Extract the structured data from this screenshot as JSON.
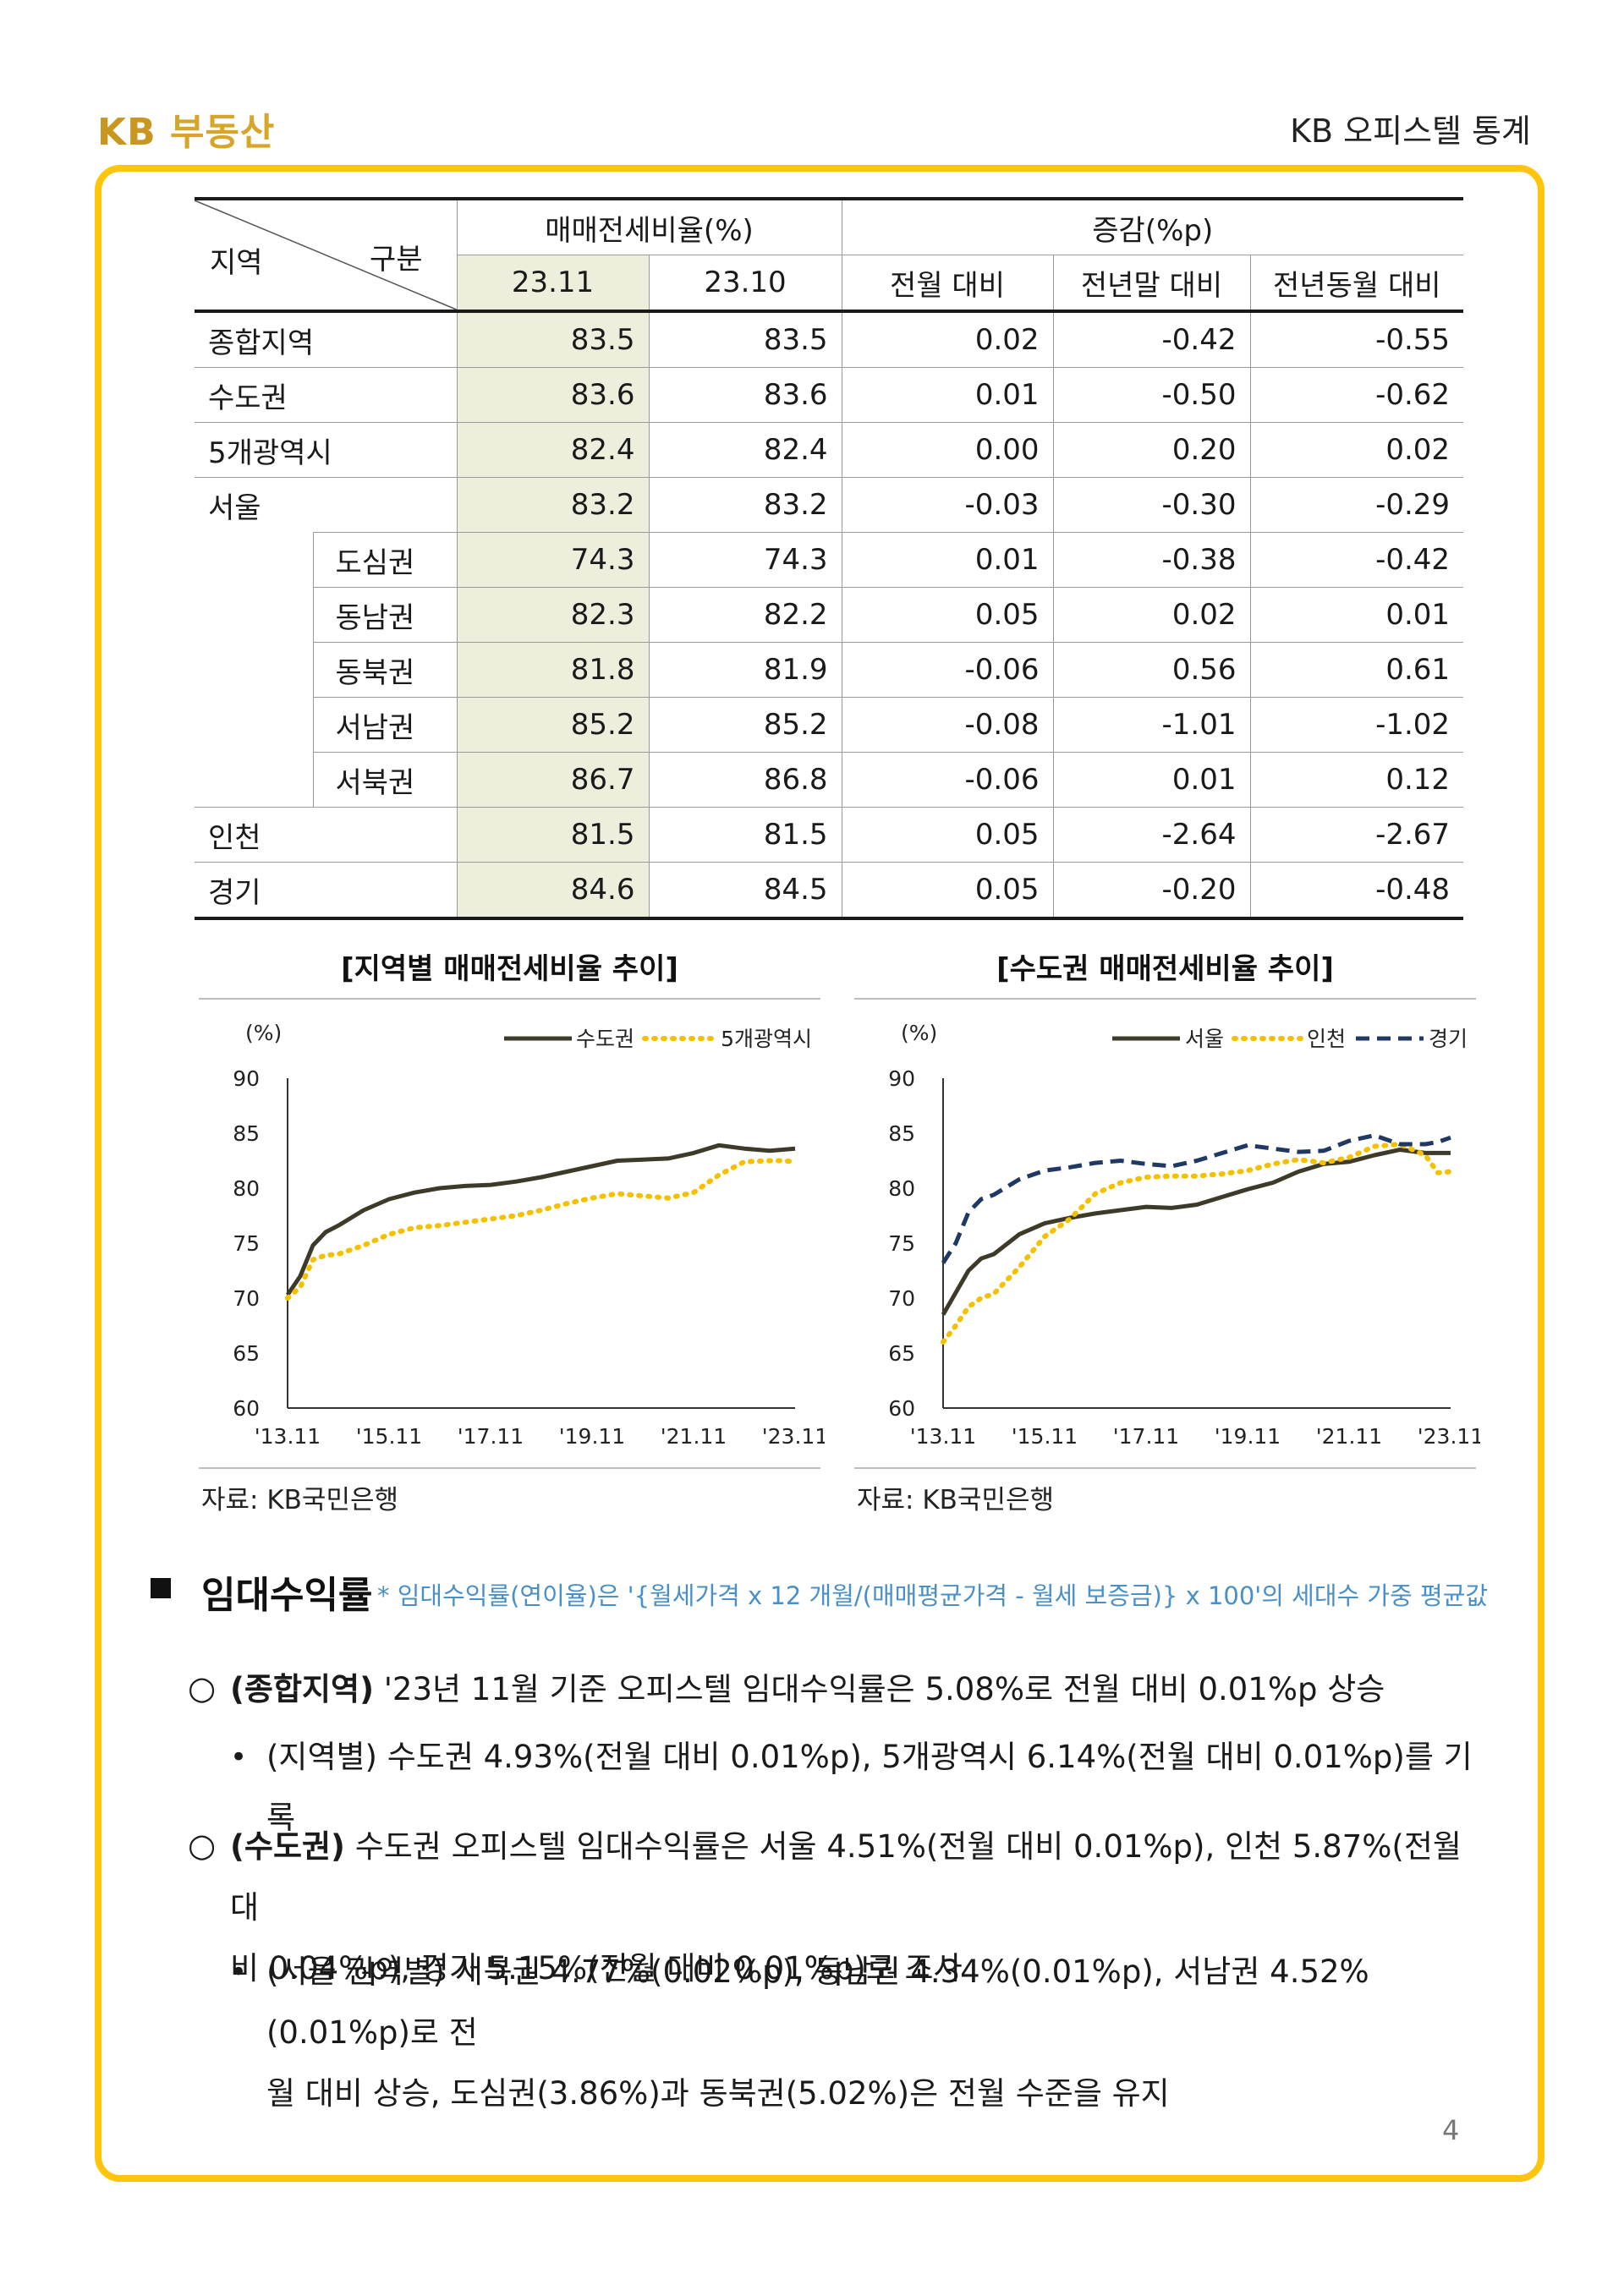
{
  "header": {
    "logo_kb": "KB",
    "logo_text": "부동산",
    "doc_title": "KB 오피스텔 통계"
  },
  "table": {
    "corner_left": "지역",
    "corner_right": "구분",
    "group1": "매매전세비율(%)",
    "group2": "증감(%p)",
    "cols": [
      "23.11",
      "23.10",
      "전월 대비",
      "전년말 대비",
      "전년동월 대비"
    ],
    "rows": [
      {
        "region": "종합지역",
        "v": [
          "83.5",
          "83.5",
          "0.02",
          "-0.42",
          "-0.55"
        ]
      },
      {
        "region": "수도권",
        "v": [
          "83.6",
          "83.6",
          "0.01",
          "-0.50",
          "-0.62"
        ]
      },
      {
        "region": "5개광역시",
        "v": [
          "82.4",
          "82.4",
          "0.00",
          "0.20",
          "0.02"
        ]
      },
      {
        "region": "서울",
        "v": [
          "83.2",
          "83.2",
          "-0.03",
          "-0.30",
          "-0.29"
        ]
      },
      {
        "region": "도심권",
        "v": [
          "74.3",
          "74.3",
          "0.01",
          "-0.38",
          "-0.42"
        ]
      },
      {
        "region": "동남권",
        "v": [
          "82.3",
          "82.2",
          "0.05",
          "0.02",
          "0.01"
        ]
      },
      {
        "region": "동북권",
        "v": [
          "81.8",
          "81.9",
          "-0.06",
          "0.56",
          "0.61"
        ]
      },
      {
        "region": "서남권",
        "v": [
          "85.2",
          "85.2",
          "-0.08",
          "-1.01",
          "-1.02"
        ]
      },
      {
        "region": "서북권",
        "v": [
          "86.7",
          "86.8",
          "-0.06",
          "0.01",
          "0.12"
        ]
      },
      {
        "region": "인천",
        "v": [
          "81.5",
          "81.5",
          "0.05",
          "-2.64",
          "-2.67"
        ]
      },
      {
        "region": "경기",
        "v": [
          "84.6",
          "84.5",
          "0.05",
          "-0.20",
          "-0.48"
        ]
      }
    ]
  },
  "chart_data": [
    {
      "type": "line",
      "title": "[지역별 매매전세비율 추이]",
      "ylabel": "(%)",
      "ylim": [
        60,
        90
      ],
      "yticks": [
        "90",
        "85",
        "80",
        "75",
        "70",
        "65",
        "60"
      ],
      "xticks": [
        "'13.11",
        "'15.11",
        "'17.11",
        "'19.11",
        "'21.11",
        "'23.11"
      ],
      "legend_position": "top-right",
      "series": [
        {
          "name": "수도권",
          "color": "#3d3a2a",
          "style": "solid",
          "x": [
            0,
            3,
            6,
            9,
            12,
            18,
            24,
            30,
            36,
            42,
            48,
            54,
            60,
            66,
            72,
            78,
            84,
            90,
            96,
            102,
            108,
            114,
            117,
            120
          ],
          "y": [
            70.3,
            72.0,
            74.8,
            76.0,
            76.6,
            78.0,
            79.0,
            79.6,
            80.0,
            80.2,
            80.3,
            80.6,
            81.0,
            81.5,
            82.0,
            82.5,
            82.6,
            82.7,
            83.2,
            83.9,
            83.6,
            83.4,
            83.5,
            83.6
          ]
        },
        {
          "name": "5개광역시",
          "color": "#f5c000",
          "style": "dotted",
          "x": [
            0,
            3,
            6,
            9,
            12,
            18,
            24,
            30,
            36,
            42,
            48,
            54,
            60,
            66,
            72,
            78,
            84,
            90,
            96,
            102,
            108,
            114,
            117,
            120
          ],
          "y": [
            70.0,
            71.0,
            73.5,
            73.9,
            74.0,
            74.8,
            75.8,
            76.4,
            76.6,
            76.9,
            77.2,
            77.5,
            78.0,
            78.6,
            79.1,
            79.5,
            79.3,
            79.1,
            79.6,
            81.2,
            82.4,
            82.5,
            82.5,
            82.4
          ]
        }
      ]
    },
    {
      "type": "line",
      "title": "[수도권 매매전세비율 추이]",
      "ylabel": "(%)",
      "ylim": [
        60,
        90
      ],
      "yticks": [
        "90",
        "85",
        "80",
        "75",
        "70",
        "65",
        "60"
      ],
      "xticks": [
        "'13.11",
        "'15.11",
        "'17.11",
        "'19.11",
        "'21.11",
        "'23.11"
      ],
      "legend_position": "top-right",
      "series": [
        {
          "name": "서울",
          "color": "#3d3a2a",
          "style": "solid",
          "x": [
            0,
            3,
            6,
            9,
            12,
            18,
            24,
            30,
            36,
            42,
            48,
            54,
            60,
            66,
            72,
            78,
            84,
            90,
            96,
            102,
            108,
            114,
            117,
            120
          ],
          "y": [
            68.5,
            70.5,
            72.5,
            73.6,
            74.0,
            75.8,
            76.8,
            77.3,
            77.7,
            78.0,
            78.3,
            78.2,
            78.5,
            79.2,
            79.9,
            80.5,
            81.5,
            82.2,
            82.4,
            83.0,
            83.5,
            83.2,
            83.2,
            83.2
          ]
        },
        {
          "name": "인천",
          "color": "#f5c000",
          "style": "dotted",
          "x": [
            0,
            3,
            6,
            9,
            12,
            18,
            24,
            30,
            36,
            42,
            48,
            54,
            60,
            66,
            72,
            78,
            84,
            90,
            96,
            102,
            108,
            114,
            117,
            120
          ],
          "y": [
            66.0,
            67.5,
            69.2,
            70.0,
            70.4,
            72.8,
            75.6,
            77.2,
            79.5,
            80.5,
            81.0,
            81.1,
            81.1,
            81.3,
            81.6,
            82.2,
            82.6,
            82.3,
            82.8,
            83.8,
            84.0,
            83.0,
            81.4,
            81.5
          ]
        },
        {
          "name": "경기",
          "color": "#1f3864",
          "style": "dashed",
          "x": [
            0,
            3,
            6,
            9,
            12,
            18,
            24,
            30,
            36,
            42,
            48,
            54,
            60,
            66,
            72,
            78,
            84,
            90,
            96,
            102,
            108,
            114,
            117,
            120
          ],
          "y": [
            73.2,
            75.0,
            77.8,
            79.0,
            79.4,
            80.8,
            81.6,
            81.9,
            82.3,
            82.5,
            82.2,
            82.0,
            82.5,
            83.2,
            83.9,
            83.6,
            83.3,
            83.4,
            84.3,
            84.8,
            84.0,
            84.0,
            84.2,
            84.6
          ]
        }
      ]
    }
  ],
  "chart1": {
    "title": "[지역별 매매전세비율 추이]",
    "source": "자료: KB국민은행"
  },
  "chart2": {
    "title": "[수도권 매매전세비율 추이]",
    "source": "자료: KB국민은행"
  },
  "section": {
    "title": "임대수익률",
    "note": "* 임대수익률(연이율)은 '{월세가격 x 12 개월/(매매평균가격 - 월세 보증금)} x 100'의 세대수 가중 평균값",
    "p1_lead": "(종합지역)",
    "p1_text": " '23년 11월 기준 오피스텔 임대수익률은 5.08%로 전월 대비 0.01%p 상승",
    "b1_text": "(지역별) 수도권 4.93%(전월 대비 0.01%p), 5개광역시 6.14%(전월 대비 0.01%p)를 기록",
    "p2_lead": "(수도권)",
    "p2_line1": " 수도권 오피스텔 임대수익률은 서울 4.51%(전월 대비 0.01%p), 인천 5.87%(전월 대",
    "p2_line2": "비 0.04%p), 경기 5.15%(전월 대비 0.01%p)로 조사",
    "b2_line1": "(서울 권역별) 서북권 4.77%(0.02%p), 동남권 4.34%(0.01%p), 서남권 4.52%(0.01%p)로 전",
    "b2_line2": "월 대비 상승, 도심권(3.86%)과 동북권(5.02%)은 전월 수준을 유지"
  },
  "page_number": "4"
}
